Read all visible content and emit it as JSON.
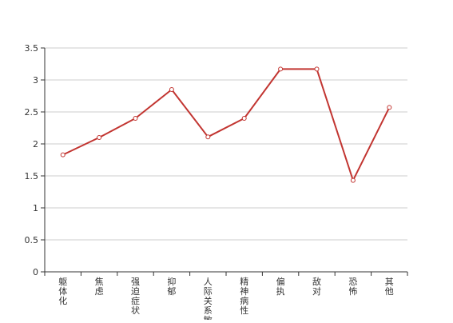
{
  "chart_data": {
    "type": "line",
    "categories": [
      "躯体化",
      "焦虑",
      "强迫症状",
      "抑郁",
      "人际关系敏感",
      "精神病性",
      "偏执",
      "敌对",
      "恐怖",
      "其他"
    ],
    "series": [
      {
        "values": [
          1.83,
          2.1,
          2.4,
          2.85,
          2.11,
          2.4,
          3.17,
          3.17,
          1.43,
          2.57
        ]
      }
    ],
    "y_ticks": [
      "0",
      "0.5",
      "1",
      "1.5",
      "2",
      "2.5",
      "3",
      "3.5"
    ],
    "ylim": [
      0,
      3.5
    ],
    "grid": true,
    "line_color": "#c23531",
    "grid_color": "#cccccc",
    "axis_color": "#333333"
  }
}
